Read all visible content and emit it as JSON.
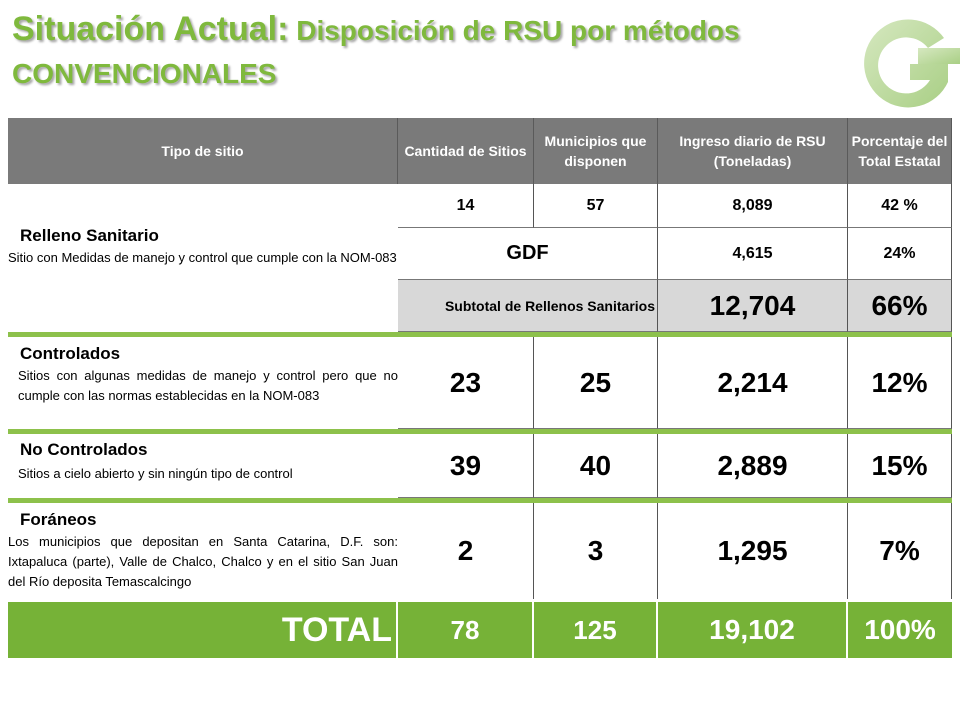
{
  "title": {
    "main": "Situación Actual:",
    "sub": " Disposición de RSU por métodos",
    "line2": "CONVENCIONALES"
  },
  "colors": {
    "green": "#7fb93d",
    "header_grey": "#7a7a7a",
    "total_green": "#76b237"
  },
  "logo": {
    "icon": "company-logo-icon"
  },
  "table": {
    "headers": [
      "Tipo de sitio",
      "Cantidad de Sitios",
      "Municipios que disponen",
      "Ingreso diario de RSU (Toneladas)",
      "Porcentaje del Total Estatal"
    ],
    "relleno": {
      "title": "Relleno Sanitario",
      "desc": "Sitio con Medidas de manejo y control que cumple con la NOM-083",
      "sitios": "14",
      "municipios": "57",
      "ingreso": "8,089",
      "porcentaje": "42 %",
      "gdf_label": "GDF",
      "gdf_ingreso": "4,615",
      "gdf_porcentaje": "24%",
      "subtotal_label": "Subtotal de Rellenos Sanitarios",
      "subtotal_ingreso": "12,704",
      "subtotal_porcentaje": "66%"
    },
    "controlados": {
      "title": "Controlados",
      "desc": "Sitios con algunas medidas de manejo y control pero que no cumple con las normas establecidas en la NOM-083",
      "sitios": "23",
      "municipios": "25",
      "ingreso": "2,214",
      "porcentaje": "12%"
    },
    "no_controlados": {
      "title": "No Controlados",
      "desc": "Sitios a cielo abierto y sin ningún tipo de control",
      "sitios": "39",
      "municipios": "40",
      "ingreso": "2,889",
      "porcentaje": "15%"
    },
    "foraneos": {
      "title": "Foráneos",
      "desc": "Los municipios que depositan en Santa Catarina, D.F. son: Ixtapaluca (parte), Valle de Chalco, Chalco y en el sitio San Juan del Río deposita Temascalcingo",
      "sitios": "2",
      "municipios": "3",
      "ingreso": "1,295",
      "porcentaje": "7%"
    },
    "total": {
      "label": "TOTAL",
      "sitios": "78",
      "municipios": "125",
      "ingreso": "19,102",
      "porcentaje": "100%"
    }
  }
}
